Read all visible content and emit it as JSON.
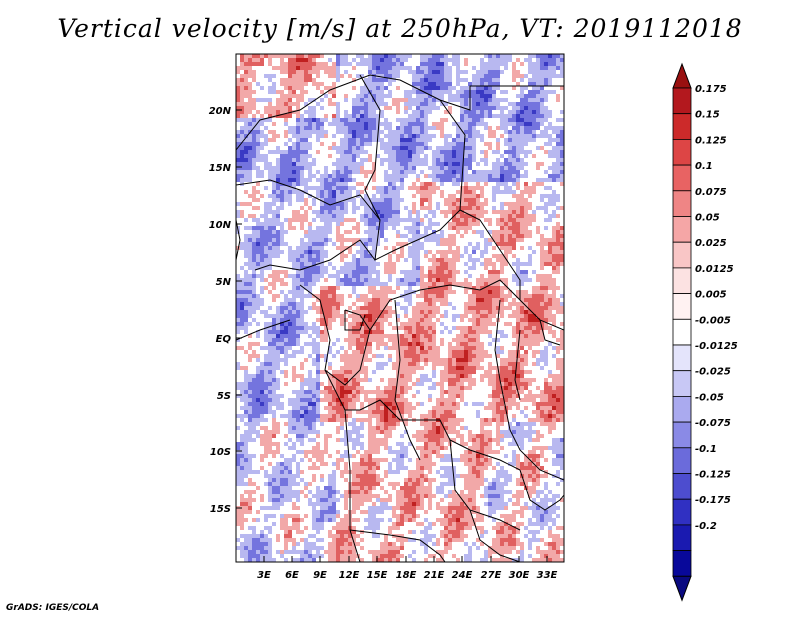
{
  "title": "Vertical velocity [m/s] at 250hPa, VT: 2019112018",
  "footer": "GrADS: IGES/COLA",
  "lat_labels": [
    "20N",
    "15N",
    "10N",
    "5N",
    "EQ",
    "5S",
    "10S",
    "15S"
  ],
  "lon_labels": [
    "3E",
    "6E",
    "9E",
    "12E",
    "15E",
    "18E",
    "21E",
    "24E",
    "27E",
    "30E",
    "33E"
  ],
  "colorbar": {
    "labels": [
      "0.175",
      "0.15",
      "0.125",
      "0.1",
      "0.075",
      "0.05",
      "0.025",
      "0.0125",
      "0.005",
      "-0.005",
      "-0.0125",
      "-0.025",
      "-0.05",
      "-0.075",
      "-0.1",
      "-0.125",
      "-0.175",
      "-0.2"
    ],
    "colors": [
      "#b3181e",
      "#cc2a2a",
      "#dd4545",
      "#e86363",
      "#ef8585",
      "#f5a6a6",
      "#f9c6c6",
      "#fce2e2",
      "#fff2f2",
      "#ffffff",
      "#e4e4fb",
      "#c8c8f5",
      "#aaaaef",
      "#8a8ae6",
      "#6b6bdb",
      "#4d4dcf",
      "#3030c2",
      "#1a1ab0",
      "#08089a"
    ],
    "top_arrow_color": "#991010",
    "bottom_arrow_color": "#0a0a80"
  },
  "map_colors": {
    "strong_red": "#c02020",
    "red": "#e06060",
    "light_red": "#f2a8a8",
    "white": "#ffffff",
    "light_blue": "#b8b8f0",
    "blue": "#7474de",
    "strong_blue": "#3a3ac4",
    "border": "#000000"
  }
}
